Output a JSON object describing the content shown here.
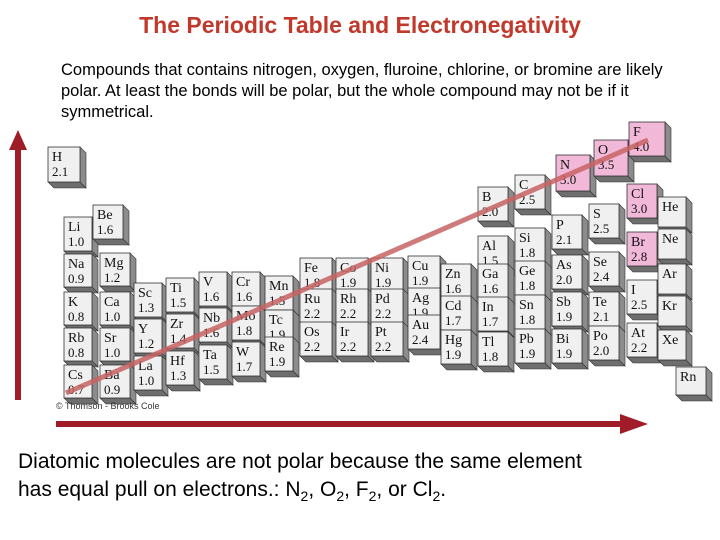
{
  "title": "The Periodic Table and Electronegativity",
  "intro": "Compounds that contains nitrogen, oxygen, fluroine, chlorine, or bromine are likely polar.  At least the bonds will be polar, but the whole compound may not be if it symmetrical.",
  "credit": "© Thomson - Brooks Cole",
  "bottom": {
    "line1": "Diatomic molecules are not polar because the same element",
    "line2_prefix": "has equal pull on electrons.:  ",
    "f1": "N",
    "s1": "2",
    "c1": ", ",
    "f2": "O",
    "s2": "2",
    "c2": ", ",
    "f3": "F",
    "s3": "2",
    "c3": ", or ",
    "f4": "Cl",
    "s4": "2",
    "end": "."
  },
  "colors": {
    "title": "#c0392b",
    "arrow": "#a01c28",
    "trend_line": "#c86464",
    "cell": "#f0f0f0",
    "cell_side": "#8c8c8c",
    "highlight_cell": "#f2b8d8"
  },
  "elements": [
    {
      "sym": "H",
      "en": "2.1",
      "hl": false
    },
    {
      "sym": "Li",
      "en": "1.0",
      "hl": false
    },
    {
      "sym": "Be",
      "en": "1.6",
      "hl": false
    },
    {
      "sym": "Na",
      "en": "0.9",
      "hl": false
    },
    {
      "sym": "Mg",
      "en": "1.2",
      "hl": false
    },
    {
      "sym": "K",
      "en": "0.8",
      "hl": false
    },
    {
      "sym": "Ca",
      "en": "1.0",
      "hl": false
    },
    {
      "sym": "Rb",
      "en": "0.8",
      "hl": false
    },
    {
      "sym": "Sr",
      "en": "1.0",
      "hl": false
    },
    {
      "sym": "Cs",
      "en": "0.7",
      "hl": false
    },
    {
      "sym": "Ba",
      "en": "0.9",
      "hl": false
    },
    {
      "sym": "Sc",
      "en": "1.3",
      "hl": false
    },
    {
      "sym": "Y",
      "en": "1.2",
      "hl": false
    },
    {
      "sym": "La",
      "en": "1.0",
      "hl": false
    },
    {
      "sym": "Ti",
      "en": "1.5",
      "hl": false
    },
    {
      "sym": "Zr",
      "en": "1.4",
      "hl": false
    },
    {
      "sym": "Hf",
      "en": "1.3",
      "hl": false
    },
    {
      "sym": "V",
      "en": "1.6",
      "hl": false
    },
    {
      "sym": "Nb",
      "en": "1.6",
      "hl": false
    },
    {
      "sym": "Ta",
      "en": "1.5",
      "hl": false
    },
    {
      "sym": "Cr",
      "en": "1.6",
      "hl": false
    },
    {
      "sym": "Mo",
      "en": "1.8",
      "hl": false
    },
    {
      "sym": "W",
      "en": "1.7",
      "hl": false
    },
    {
      "sym": "Mn",
      "en": "1.5",
      "hl": false
    },
    {
      "sym": "Tc",
      "en": "1.9",
      "hl": false
    },
    {
      "sym": "Re",
      "en": "1.9",
      "hl": false
    },
    {
      "sym": "Fe",
      "en": "1.8",
      "hl": false
    },
    {
      "sym": "Ru",
      "en": "2.2",
      "hl": false
    },
    {
      "sym": "Os",
      "en": "2.2",
      "hl": false
    },
    {
      "sym": "Co",
      "en": "1.9",
      "hl": false
    },
    {
      "sym": "Rh",
      "en": "2.2",
      "hl": false
    },
    {
      "sym": "Ir",
      "en": "2.2",
      "hl": false
    },
    {
      "sym": "Ni",
      "en": "1.9",
      "hl": false
    },
    {
      "sym": "Pd",
      "en": "2.2",
      "hl": false
    },
    {
      "sym": "Pt",
      "en": "2.2",
      "hl": false
    },
    {
      "sym": "Cu",
      "en": "1.9",
      "hl": false
    },
    {
      "sym": "Ag",
      "en": "1.9",
      "hl": false
    },
    {
      "sym": "Au",
      "en": "2.4",
      "hl": false
    },
    {
      "sym": "Zn",
      "en": "1.6",
      "hl": false
    },
    {
      "sym": "Cd",
      "en": "1.7",
      "hl": false
    },
    {
      "sym": "Hg",
      "en": "1.9",
      "hl": false
    },
    {
      "sym": "B",
      "en": "2.0",
      "hl": false
    },
    {
      "sym": "Al",
      "en": "1.5",
      "hl": false
    },
    {
      "sym": "Ga",
      "en": "1.6",
      "hl": false
    },
    {
      "sym": "In",
      "en": "1.7",
      "hl": false
    },
    {
      "sym": "Tl",
      "en": "1.8",
      "hl": false
    },
    {
      "sym": "C",
      "en": "2.5",
      "hl": false
    },
    {
      "sym": "Si",
      "en": "1.8",
      "hl": false
    },
    {
      "sym": "Ge",
      "en": "1.8",
      "hl": false
    },
    {
      "sym": "Sn",
      "en": "1.8",
      "hl": false
    },
    {
      "sym": "Pb",
      "en": "1.9",
      "hl": false
    },
    {
      "sym": "N",
      "en": "3.0",
      "hl": true
    },
    {
      "sym": "P",
      "en": "2.1",
      "hl": false
    },
    {
      "sym": "As",
      "en": "2.0",
      "hl": false
    },
    {
      "sym": "Sb",
      "en": "1.9",
      "hl": false
    },
    {
      "sym": "Bi",
      "en": "1.9",
      "hl": false
    },
    {
      "sym": "O",
      "en": "3.5",
      "hl": true
    },
    {
      "sym": "S",
      "en": "2.5",
      "hl": false
    },
    {
      "sym": "Se",
      "en": "2.4",
      "hl": false
    },
    {
      "sym": "Te",
      "en": "2.1",
      "hl": false
    },
    {
      "sym": "Po",
      "en": "2.0",
      "hl": false
    },
    {
      "sym": "F",
      "en": "4.0",
      "hl": true
    },
    {
      "sym": "Cl",
      "en": "3.0",
      "hl": true
    },
    {
      "sym": "Br",
      "en": "2.8",
      "hl": true
    },
    {
      "sym": "I",
      "en": "2.5",
      "hl": false
    },
    {
      "sym": "At",
      "en": "2.2",
      "hl": false
    },
    {
      "sym": "He",
      "en": "",
      "hl": false
    },
    {
      "sym": "Ne",
      "en": "",
      "hl": false
    },
    {
      "sym": "Ar",
      "en": "",
      "hl": false
    },
    {
      "sym": "Kr",
      "en": "",
      "hl": false
    },
    {
      "sym": "Xe",
      "en": "",
      "hl": false
    },
    {
      "sym": "Rn",
      "en": "",
      "hl": false
    }
  ]
}
